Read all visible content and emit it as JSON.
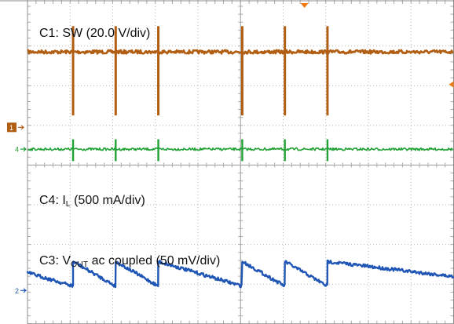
{
  "colors": {
    "sw": "#b25e12",
    "il": "#22a135",
    "vout": "#1f55b5",
    "trigger": "#f07a10"
  },
  "channel_markers": {
    "ch1": "1",
    "ch4": "4",
    "ch2": "2"
  },
  "labels": {
    "c1": "C1: SW (20.0 V/div)",
    "c4_prefix": "C4: I",
    "c4_sub": "L",
    "c4_suffix": " (500 mA/div)",
    "c3_prefix": "C3: V",
    "c3_sub": "OUT",
    "c3_suffix": " ac coupled (50 mV/div)"
  },
  "chart_data": {
    "type": "line",
    "grid": {
      "major_divisions_x": 10,
      "major_divisions_y": 8,
      "minor_per_division": 5,
      "visible": true
    },
    "switching_events_div": [
      1.07,
      2.07,
      3.07,
      5.04,
      6.04,
      7.04
    ],
    "series": [
      {
        "key": "sw",
        "name": "C1: SW (20.0 V/div)",
        "baseline_div": 1.15,
        "spike_top_div": 0.5,
        "spike_bottom_div": 2.75
      },
      {
        "key": "il",
        "name": "C4: IL (500 mA/div)",
        "baseline_div": 3.6,
        "spike_up_div": 0.25,
        "spike_down_div": 0.3
      },
      {
        "key": "vout",
        "name": "C3: VOUT ac coupled (50 mV/div)",
        "baseline_div": 6.95,
        "ripple_high_div": 6.43,
        "ripple_low_div": 7.05
      }
    ]
  }
}
